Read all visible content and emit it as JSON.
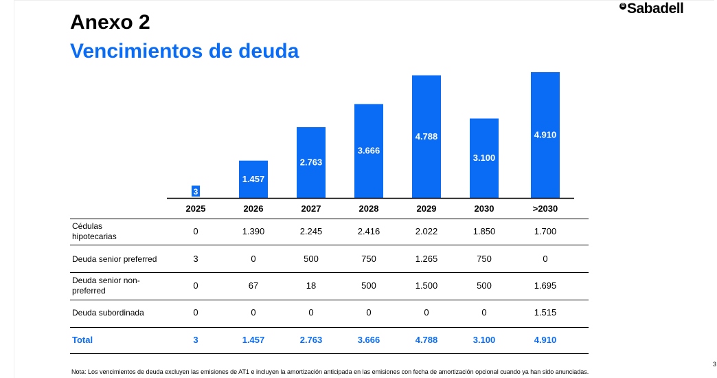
{
  "header": {
    "title": "Anexo 2",
    "subtitle": "Vencimientos de deuda",
    "logo": "Sabadell",
    "logo_mark": "B"
  },
  "colors": {
    "accent": "#0a6cf5"
  },
  "chart_data": {
    "type": "bar",
    "categories": [
      "2025",
      "2026",
      "2027",
      "2028",
      "2029",
      "2030",
      ">2030"
    ],
    "values": [
      3,
      1457,
      2763,
      3666,
      4788,
      3100,
      4910
    ],
    "labels": [
      "3",
      "1.457",
      "2.763",
      "3.666",
      "4.788",
      "3.100",
      "4.910"
    ],
    "title": "Vencimientos de deuda",
    "ylim": [
      0,
      5000
    ]
  },
  "table": {
    "rows": [
      {
        "label": [
          "Cédulas",
          "hipotecarias"
        ],
        "values": [
          "0",
          "1.390",
          "2.245",
          "2.416",
          "2.022",
          "1.850",
          "1.700"
        ]
      },
      {
        "label": [
          "Deuda senior preferred"
        ],
        "values": [
          "3",
          "0",
          "500",
          "750",
          "1.265",
          "750",
          "0"
        ]
      },
      {
        "label": [
          "Deuda senior non-",
          "preferred"
        ],
        "values": [
          "0",
          "67",
          "18",
          "500",
          "1.500",
          "500",
          "1.695"
        ]
      },
      {
        "label": [
          "Deuda subordinada"
        ],
        "values": [
          "0",
          "0",
          "0",
          "0",
          "0",
          "0",
          "1.515"
        ]
      }
    ],
    "total": {
      "label": "Total",
      "values": [
        "3",
        "1.457",
        "2.763",
        "3.666",
        "4.788",
        "3.100",
        "4.910"
      ]
    }
  },
  "footer": {
    "note": "Nota: Los vencimientos de deuda excluyen las emisiones de AT1 e incluyen la amortización anticipada en las emisiones con fecha de amortización opcional cuando ya han sido anunciadas.",
    "page": "3"
  }
}
